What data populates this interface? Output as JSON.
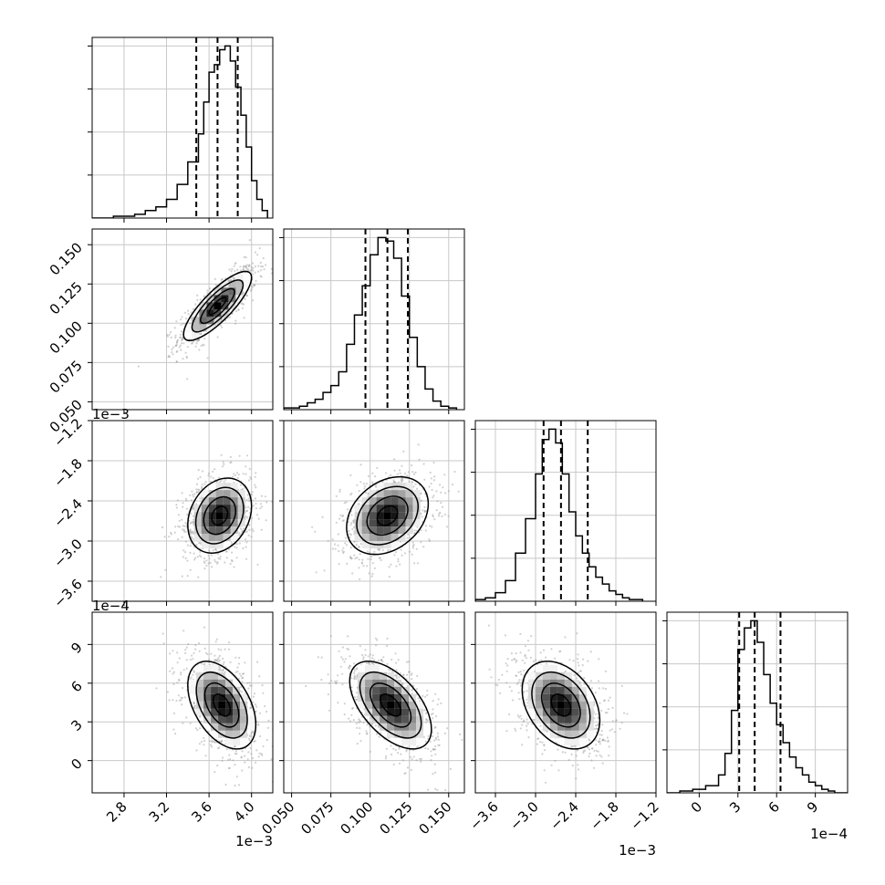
{
  "chart_data": {
    "type": "corner",
    "n_params": 4,
    "params": [
      {
        "range": [
          2.5,
          4.2
        ],
        "ticks": [
          2.8,
          3.2,
          3.6,
          4.0
        ],
        "tick_labels": [
          "2.8",
          "3.2",
          "3.6",
          "4.0"
        ],
        "offset_label": "1e−3",
        "quantiles": [
          3.48,
          3.68,
          3.87
        ],
        "hist_bins": [
          2.5,
          2.6,
          2.7,
          2.8,
          2.9,
          3.0,
          3.1,
          3.2,
          3.3,
          3.4,
          3.5,
          3.55,
          3.6,
          3.65,
          3.7,
          3.75,
          3.8,
          3.85,
          3.9,
          3.95,
          4.0,
          4.05,
          4.1,
          4.15
        ],
        "hist_counts": [
          0,
          0,
          1,
          1,
          2,
          4,
          6,
          10,
          18,
          30,
          45,
          62,
          78,
          82,
          90,
          92,
          84,
          70,
          55,
          38,
          20,
          10,
          4
        ]
      },
      {
        "range": [
          0.045,
          0.16
        ],
        "ticks": [
          0.05,
          0.075,
          0.1,
          0.125,
          0.15
        ],
        "tick_labels": [
          "0.050",
          "0.075",
          "0.100",
          "0.125",
          "0.150"
        ],
        "offset_label": "",
        "quantiles": [
          0.097,
          0.111,
          0.124
        ],
        "hist_bins": [
          0.045,
          0.05,
          0.055,
          0.06,
          0.065,
          0.07,
          0.075,
          0.08,
          0.085,
          0.09,
          0.095,
          0.1,
          0.105,
          0.11,
          0.115,
          0.12,
          0.125,
          0.13,
          0.135,
          0.14,
          0.145,
          0.15,
          0.155
        ],
        "hist_counts": [
          1,
          1,
          2,
          4,
          6,
          10,
          14,
          22,
          38,
          55,
          72,
          90,
          100,
          98,
          88,
          66,
          42,
          25,
          12,
          5,
          2,
          1
        ]
      },
      {
        "range": [
          -3.9,
          -1.2
        ],
        "ticks": [
          -3.6,
          -3.0,
          -2.4,
          -1.8,
          -1.2
        ],
        "tick_labels": [
          "−3.6",
          "−3.0",
          "−2.4",
          "−1.8",
          "−1.2"
        ],
        "offset_label": "1e−3",
        "quantiles": [
          -2.88,
          -2.62,
          -2.22
        ],
        "hist_bins": [
          -3.9,
          -3.75,
          -3.6,
          -3.45,
          -3.3,
          -3.15,
          -3.0,
          -2.9,
          -2.8,
          -2.7,
          -2.6,
          -2.5,
          -2.4,
          -2.3,
          -2.2,
          -2.1,
          -2.0,
          -1.9,
          -1.8,
          -1.7,
          -1.6,
          -1.5,
          -1.4
        ],
        "hist_counts": [
          1,
          2,
          5,
          12,
          28,
          48,
          74,
          94,
          100,
          92,
          74,
          52,
          38,
          28,
          20,
          14,
          10,
          6,
          4,
          2,
          1,
          1
        ]
      },
      {
        "range": [
          -2.5,
          11.5
        ],
        "ticks": [
          0,
          3,
          6,
          9
        ],
        "tick_labels": [
          "0",
          "3",
          "6",
          "9"
        ],
        "offset_label": "1e−4",
        "quantiles": [
          3.1,
          4.3,
          6.3
        ],
        "hist_bins": [
          -2.5,
          -1.5,
          -0.5,
          0.5,
          1.5,
          2.0,
          2.5,
          3.0,
          3.5,
          4.0,
          4.5,
          5.0,
          5.5,
          6.0,
          6.5,
          7.0,
          7.5,
          8.0,
          8.5,
          9.0,
          9.5,
          10.0,
          10.5,
          11.5
        ],
        "hist_counts": [
          0,
          1,
          2,
          4,
          10,
          22,
          46,
          80,
          92,
          96,
          84,
          66,
          50,
          38,
          28,
          20,
          14,
          10,
          6,
          4,
          2,
          1,
          0
        ]
      }
    ],
    "pairs": [
      {
        "row": 1,
        "col": 0,
        "center": [
          3.68,
          0.111
        ],
        "spread": [
          0.16,
          0.011
        ],
        "rho": 0.82
      },
      {
        "row": 2,
        "col": 0,
        "center": [
          3.7,
          -2.62
        ],
        "spread": [
          0.15,
          0.28
        ],
        "rho": 0.25
      },
      {
        "row": 2,
        "col": 1,
        "center": [
          0.111,
          -2.62
        ],
        "spread": [
          0.013,
          0.29
        ],
        "rho": 0.3
      },
      {
        "row": 3,
        "col": 0,
        "center": [
          3.72,
          4.3
        ],
        "spread": [
          0.16,
          1.7
        ],
        "rho": -0.45
      },
      {
        "row": 3,
        "col": 1,
        "center": [
          0.113,
          4.3
        ],
        "spread": [
          0.013,
          1.7
        ],
        "rho": -0.55
      },
      {
        "row": 3,
        "col": 2,
        "center": [
          -2.62,
          4.3
        ],
        "spread": [
          0.29,
          1.7
        ],
        "rho": -0.35
      }
    ],
    "contour_levels": [
      0.5,
      1.0,
      1.5,
      2.0
    ],
    "grid": true,
    "colors": {
      "hist_line": "#000000",
      "quantile_line": "#000000",
      "contour_line": "#000000",
      "scatter_point": "#9a9a9a",
      "grid_line": "#c8c8c8",
      "density_dark": "#000000"
    }
  }
}
